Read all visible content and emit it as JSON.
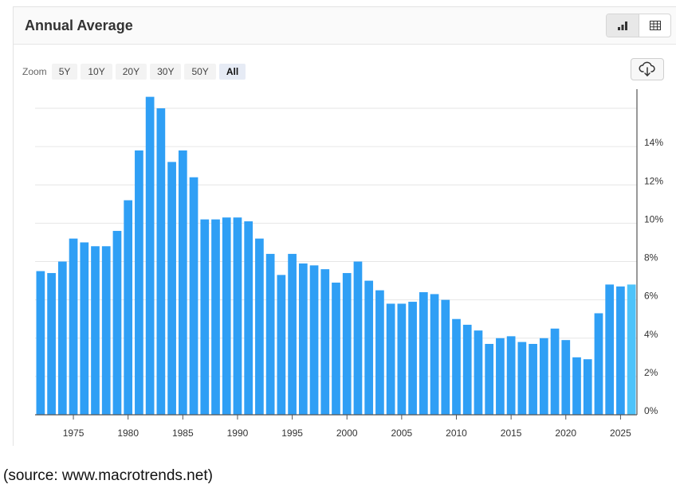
{
  "header": {
    "title": "Annual Average",
    "bar_view_icon": "bar-chart-icon",
    "table_view_icon": "table-icon"
  },
  "zoom": {
    "label": "Zoom",
    "options": [
      "5Y",
      "10Y",
      "20Y",
      "30Y",
      "50Y",
      "All"
    ],
    "selected": "All"
  },
  "download_icon": "cloud-download-icon",
  "source_note": "(source: www.macrotrends.net)",
  "colors": {
    "bar": "#2f9ff5",
    "bar_current": "#4dc3fa",
    "grid": "#e6e6e6",
    "axis": "#555555"
  },
  "chart_data": {
    "type": "bar",
    "title": "Annual Average",
    "xlabel": "",
    "ylabel": "",
    "x": [
      1972,
      1973,
      1974,
      1975,
      1976,
      1977,
      1978,
      1979,
      1980,
      1981,
      1982,
      1983,
      1984,
      1985,
      1986,
      1987,
      1988,
      1989,
      1990,
      1991,
      1992,
      1993,
      1994,
      1995,
      1996,
      1997,
      1998,
      1999,
      2000,
      2001,
      2002,
      2003,
      2004,
      2005,
      2006,
      2007,
      2008,
      2009,
      2010,
      2011,
      2012,
      2013,
      2014,
      2015,
      2016,
      2017,
      2018,
      2019,
      2020,
      2021,
      2022,
      2023,
      2024,
      2025,
      2026
    ],
    "values": [
      7.5,
      7.4,
      8.0,
      9.2,
      9.0,
      8.8,
      8.8,
      9.6,
      11.2,
      13.8,
      16.6,
      16.0,
      13.2,
      13.8,
      12.4,
      10.2,
      10.2,
      10.3,
      10.3,
      10.1,
      9.2,
      8.4,
      7.3,
      8.4,
      7.9,
      7.8,
      7.6,
      6.9,
      7.4,
      8.0,
      7.0,
      6.5,
      5.8,
      5.8,
      5.9,
      6.4,
      6.3,
      6.0,
      5.0,
      4.7,
      4.4,
      3.7,
      4.0,
      4.1,
      3.8,
      3.7,
      4.0,
      4.5,
      3.9,
      3.0,
      2.9,
      5.3,
      6.8,
      6.7,
      6.8
    ],
    "x_ticks": [
      1975,
      1980,
      1985,
      1990,
      1995,
      2000,
      2005,
      2010,
      2015,
      2020,
      2025
    ],
    "y_ticks": [
      0,
      2,
      4,
      6,
      8,
      10,
      12,
      14
    ],
    "y_tick_labels": [
      "0%",
      "2%",
      "4%",
      "6%",
      "8%",
      "10%",
      "12%",
      "14%"
    ],
    "ylim": [
      0,
      17
    ],
    "xlim": [
      1971.5,
      2026.5
    ],
    "grid": true,
    "y_axis_side": "right",
    "highlight_last": true
  }
}
